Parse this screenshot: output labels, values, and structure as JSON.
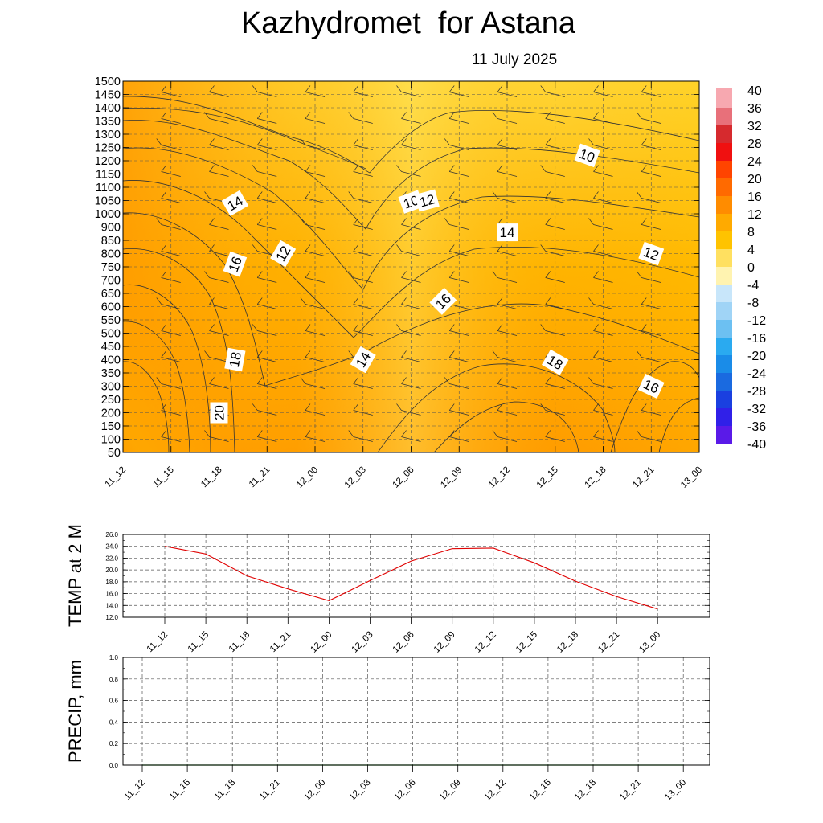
{
  "header": {
    "title": "Kazhydromet  for Astana",
    "date": "11 July 2025"
  },
  "chart_data": [
    {
      "type": "heatmap",
      "title": "Kazhydromet  for Astana",
      "subtitle": "11 July 2025",
      "x_ticks": [
        "11_12",
        "11_15",
        "11_18",
        "11_21",
        "12_00",
        "12_03",
        "12_06",
        "12_09",
        "12_12",
        "12_15",
        "12_18",
        "12_21",
        "13_00"
      ],
      "y_ticks": [
        50,
        100,
        150,
        200,
        250,
        300,
        350,
        400,
        450,
        500,
        550,
        600,
        650,
        700,
        750,
        800,
        850,
        900,
        1000,
        1050,
        1100,
        1150,
        1200,
        1250,
        1300,
        1350,
        1400,
        1450,
        1500
      ],
      "colorbar_labels": [
        "40",
        "36",
        "32",
        "28",
        "24",
        "20",
        "16",
        "12",
        "8",
        "4",
        "0",
        "-4",
        "-8",
        "-12",
        "-16",
        "-20",
        "-24",
        "-28",
        "-32",
        "-36",
        "-40"
      ],
      "contour_labels": [
        {
          "text": "14",
          "x": "11_19",
          "y": 1040
        },
        {
          "text": "16",
          "x": "11_19",
          "y": 760
        },
        {
          "text": "18",
          "x": "11_19",
          "y": 400
        },
        {
          "text": "20",
          "x": "11_18",
          "y": 200
        },
        {
          "text": "12",
          "x": "11_22",
          "y": 800
        },
        {
          "text": "14",
          "x": "12_03",
          "y": 400
        },
        {
          "text": "10",
          "x": "12_06",
          "y": 1045
        },
        {
          "text": "12",
          "x": "12_07",
          "y": 1050
        },
        {
          "text": "16",
          "x": "12_08",
          "y": 620
        },
        {
          "text": "14",
          "x": "12_12",
          "y": 880
        },
        {
          "text": "10",
          "x": "12_17",
          "y": 1220
        },
        {
          "text": "18",
          "x": "12_15",
          "y": 390
        },
        {
          "text": "12",
          "x": "12_21",
          "y": 800
        },
        {
          "text": "16",
          "x": "12_21",
          "y": 300
        }
      ],
      "grid": true
    },
    {
      "type": "line",
      "ylabel": "TEMP at 2 M",
      "x": [
        "11_12",
        "11_15",
        "11_18",
        "11_21",
        "12_00",
        "12_03",
        "12_06",
        "12_09",
        "12_12",
        "12_15",
        "12_18",
        "12_21",
        "13_00"
      ],
      "series": [
        {
          "values": [
            24.0,
            22.7,
            19.0,
            16.8,
            14.8,
            18.2,
            21.5,
            23.6,
            23.7,
            21.2,
            18.1,
            15.5,
            13.4
          ]
        }
      ],
      "y_ticks": [
        "26.0",
        "24.0",
        "22.0",
        "20.0",
        "18.0",
        "16.0",
        "14.0",
        "12.0"
      ],
      "ylim": [
        12.0,
        26.0
      ],
      "line_color": "#e00000",
      "grid": true
    },
    {
      "type": "line",
      "ylabel": "PRECIP, mm",
      "x": [
        "11_12",
        "11_15",
        "11_18",
        "11_21",
        "12_00",
        "12_03",
        "12_06",
        "12_09",
        "12_12",
        "12_15",
        "12_18",
        "12_21",
        "13_00"
      ],
      "series": [
        {
          "values": [
            0,
            0,
            0,
            0,
            0,
            0,
            0,
            0,
            0,
            0,
            0,
            0,
            0
          ]
        }
      ],
      "y_ticks": [
        "1.0",
        "0.8",
        "0.6",
        "0.4",
        "0.2",
        "0.0"
      ],
      "ylim": [
        0.0,
        1.0
      ],
      "line_color": "#008000",
      "grid": true
    }
  ]
}
